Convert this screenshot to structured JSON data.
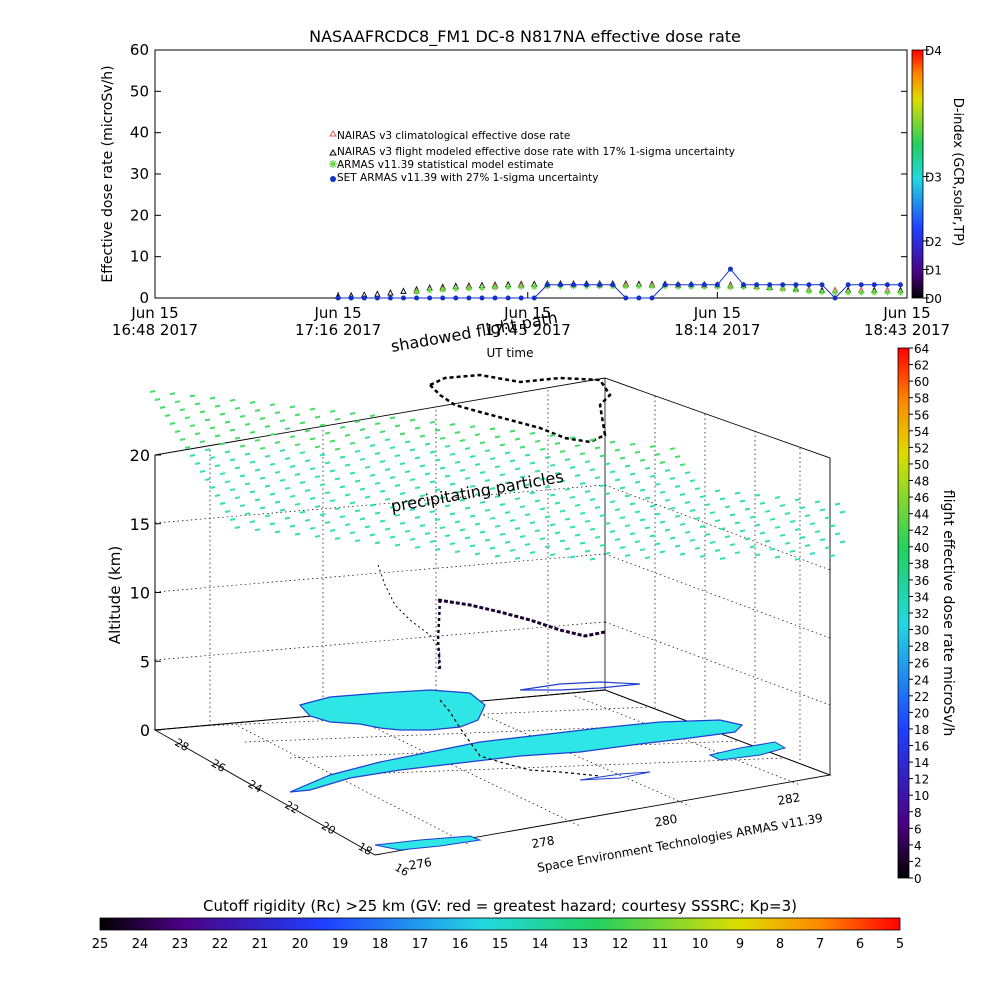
{
  "colors": {
    "climatological": "#e05a5a",
    "flight_modeled": "#000000",
    "armas_statistical": "#5fd93b",
    "set_armas": "#1432c8",
    "contour_fill": "#2ee6e6",
    "contour_line": "#1e3fd0",
    "cyan_marker": "#33e0b0",
    "green_marker": "#44dd66"
  },
  "chart_data": [
    {
      "type": "scatter",
      "title": "NASAAFRCDC8_FM1 DC-8    N817NA effective dose rate",
      "ylabel": "Effective dose rate (microSv/h)",
      "xlabel": "UT time",
      "ylim": [
        0,
        60
      ],
      "yticks": [
        "0",
        "10",
        "20",
        "30",
        "40",
        "50",
        "60"
      ],
      "xticks": [
        {
          "line1": "Jun 15",
          "line2": "16:48 2017",
          "minutes": 0
        },
        {
          "line1": "Jun 15",
          "line2": "17:16 2017",
          "minutes": 28
        },
        {
          "line1": "Jun 15",
          "line2": "17:45 2017",
          "minutes": 57
        },
        {
          "line1": "Jun 15",
          "line2": "18:14 2017",
          "minutes": 86
        },
        {
          "line1": "Jun 15",
          "line2": "18:43 2017",
          "minutes": 115
        }
      ],
      "legend_position": "center",
      "legend": [
        "NAIRAS v3 climatological effective dose rate",
        "NAIRAS v3 flight modeled effective dose rate with 17% 1-sigma uncertainty",
        "ARMAS v11.39 statistical model estimate",
        "SET ARMAS v11.39 with 27% 1-sigma uncertainty"
      ],
      "series": [
        {
          "name": "NAIRAS v3 flight modeled effective dose rate with 17% 1-sigma uncertainty",
          "x": [
            28,
            30,
            32,
            34,
            36,
            38,
            40,
            42,
            44,
            46,
            48,
            50,
            52,
            54,
            56,
            58,
            60,
            62,
            64,
            66,
            68,
            70,
            72,
            74,
            76,
            78,
            80,
            82,
            84,
            86,
            88,
            90,
            92,
            94,
            96,
            98,
            100,
            102,
            104,
            106,
            108,
            110,
            112,
            114
          ],
          "y": [
            0.4,
            0.5,
            0.7,
            0.9,
            1.2,
            1.6,
            2.0,
            2.4,
            2.6,
            2.8,
            2.9,
            3.0,
            3.1,
            3.2,
            3.3,
            3.3,
            3.4,
            3.4,
            3.4,
            3.4,
            3.4,
            3.4,
            3.4,
            3.3,
            3.3,
            3.3,
            3.2,
            3.2,
            3.2,
            3.1,
            3.1,
            3.0,
            2.8,
            2.6,
            2.4,
            2.2,
            2.0,
            1.8,
            1.8,
            1.8,
            1.8,
            1.8,
            1.8,
            1.8
          ]
        },
        {
          "name": "NAIRAS v3 climatological effective dose rate",
          "x": [
            40,
            44,
            48,
            52,
            56,
            60,
            64,
            68,
            72,
            76,
            80,
            84,
            88,
            92,
            96,
            100,
            104,
            108,
            112
          ],
          "y": [
            1.6,
            2.2,
            2.6,
            2.8,
            3.0,
            3.1,
            3.1,
            3.1,
            3.1,
            3.0,
            3.0,
            3.0,
            2.9,
            2.8,
            2.4,
            2.0,
            1.8,
            1.8,
            1.8
          ]
        },
        {
          "name": "ARMAS v11.39 statistical model estimate",
          "x": [
            40,
            42,
            44,
            46,
            48,
            50,
            52,
            54,
            56,
            58,
            60,
            62,
            64,
            66,
            68,
            70,
            72,
            74,
            76,
            78,
            80,
            82,
            84,
            86,
            88,
            90,
            92,
            94,
            96,
            98,
            100,
            102,
            104,
            106,
            108,
            110,
            112,
            114
          ],
          "y": [
            1.5,
            1.8,
            2.0,
            2.2,
            2.3,
            2.4,
            2.5,
            2.6,
            2.7,
            2.7,
            2.8,
            2.8,
            2.8,
            2.8,
            2.8,
            2.8,
            2.8,
            2.8,
            2.8,
            2.8,
            2.7,
            2.7,
            2.7,
            2.7,
            2.6,
            2.6,
            2.5,
            2.3,
            2.1,
            1.9,
            1.6,
            1.4,
            1.3,
            1.3,
            1.3,
            1.3,
            1.3,
            1.3
          ]
        },
        {
          "name": "SET ARMAS v11.39 with 27% 1-sigma uncertainty",
          "x": [
            28,
            30,
            32,
            34,
            36,
            38,
            40,
            42,
            44,
            46,
            48,
            50,
            52,
            54,
            56,
            58,
            60,
            62,
            64,
            66,
            68,
            70,
            72,
            74,
            76,
            78,
            80,
            82,
            84,
            86,
            88,
            90,
            92,
            94,
            96,
            98,
            100,
            102,
            104,
            106,
            108,
            110,
            112,
            114
          ],
          "y": [
            0,
            0,
            0,
            0,
            0,
            0,
            0,
            0,
            0,
            0,
            0,
            0,
            0,
            0,
            0,
            0,
            3.2,
            3.2,
            3.2,
            3.2,
            3.2,
            3.2,
            0,
            0,
            0,
            3.2,
            3.2,
            3.2,
            3.2,
            3.2,
            7.0,
            3.2,
            3.2,
            3.2,
            3.2,
            3.2,
            3.2,
            3.2,
            0,
            3.2,
            3.2,
            3.2,
            3.2,
            3.2
          ]
        }
      ]
    },
    {
      "type": "scatter",
      "subtype": "3d-perspective",
      "ylabel": "Altitude (km)",
      "zticks": [
        "0",
        "5",
        "10",
        "15",
        "20"
      ],
      "lat_ticks": [
        "28",
        "26",
        "24",
        "22",
        "20",
        "18",
        "16"
      ],
      "lon_ticks": [
        "276",
        "278",
        "280",
        "282"
      ],
      "annotations": [
        "shadowed flight path",
        "precipitating particles"
      ],
      "credit": "Space Environment Technologies ARMAS v11.39"
    }
  ],
  "d_index_bar": {
    "label": "D-index (GCR,solar,TP)",
    "ticks": [
      "D0",
      "D1",
      "D2",
      "D3",
      "D4"
    ]
  },
  "dose_bar": {
    "label": "flight effective dose rate microSv/h",
    "ticks": [
      "0",
      "2",
      "4",
      "6",
      "8",
      "10",
      "12",
      "14",
      "16",
      "18",
      "20",
      "22",
      "24",
      "26",
      "28",
      "30",
      "32",
      "34",
      "36",
      "38",
      "40",
      "42",
      "44",
      "46",
      "48",
      "50",
      "52",
      "54",
      "56",
      "58",
      "60",
      "62",
      "64"
    ]
  },
  "rigidity_bar": {
    "label": "Cutoff rigidity (Rc) >25 km (GV: red = greatest hazard; courtesy SSSRC; Kp=3)",
    "ticks": [
      "25",
      "24",
      "23",
      "22",
      "21",
      "20",
      "19",
      "18",
      "17",
      "16",
      "15",
      "14",
      "13",
      "12",
      "11",
      "10",
      "9",
      "8",
      "7",
      "6",
      "5"
    ]
  }
}
